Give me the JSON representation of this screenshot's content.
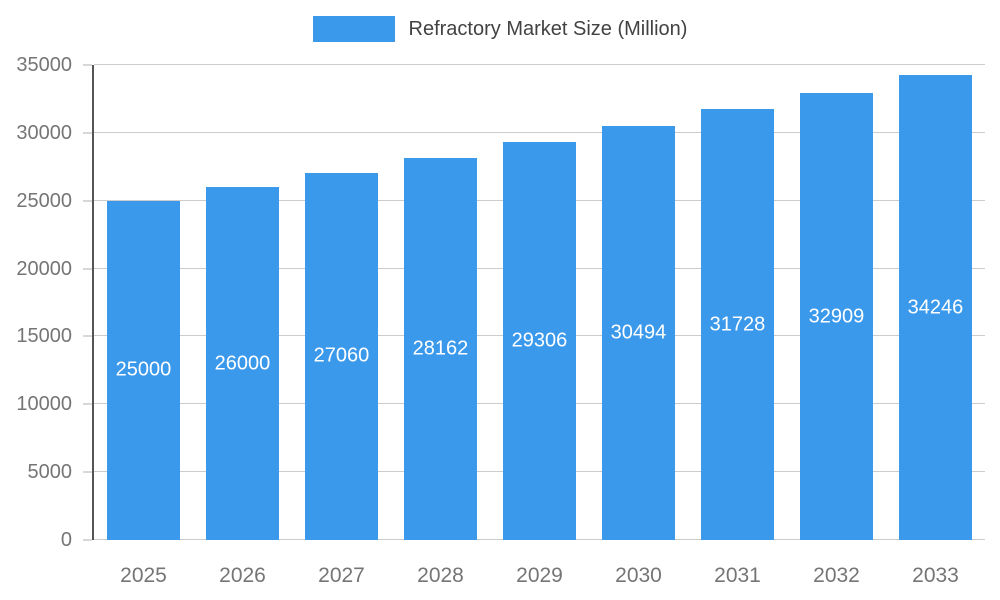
{
  "chart_data": {
    "type": "bar",
    "title": "Refractory Market Size (Million)",
    "categories": [
      "2025",
      "2026",
      "2027",
      "2028",
      "2029",
      "2030",
      "2031",
      "2032",
      "2033"
    ],
    "values": [
      25000,
      26000,
      27060,
      28162,
      29306,
      30494,
      31728,
      32909,
      34246
    ],
    "xlabel": "",
    "ylabel": "",
    "ylim": [
      0,
      35000
    ],
    "yticks": [
      0,
      5000,
      10000,
      15000,
      20000,
      25000,
      30000,
      35000
    ],
    "grid": true,
    "legend_position": "top-center",
    "bar_color": "#3B99EC",
    "bar_label_color": "#ffffff",
    "axis_text_color": "#757575"
  }
}
